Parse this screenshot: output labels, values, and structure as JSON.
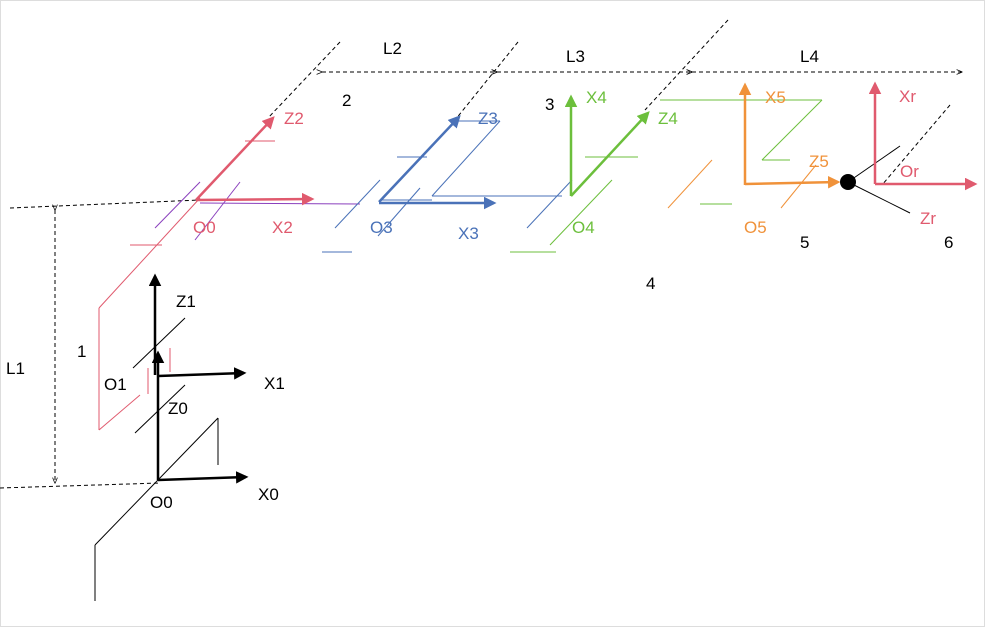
{
  "colors": {
    "base": "#000000",
    "link2": "#e05a6e",
    "link3": "#4a72b8",
    "link4": "#6cbf3c",
    "link5": "#f0923a",
    "link6": "#e05a6e",
    "purple": "#8a3fbd",
    "frame": "#dddddd"
  },
  "dimensions": {
    "L1": "L1",
    "L2": "L2",
    "L3": "L3",
    "L4": "L4"
  },
  "joints": {
    "j1": "1",
    "j2": "2",
    "j3": "3",
    "j4": "4",
    "j5": "5",
    "j6": "6"
  },
  "frames": {
    "f0": {
      "x": "X0",
      "z": "Z0",
      "o": "O0"
    },
    "f1": {
      "x": "X1",
      "z": "Z1",
      "o": "O1"
    },
    "f2": {
      "x": "X2",
      "z": "Z2",
      "o": "O0"
    },
    "f3": {
      "x": "X3",
      "z": "Z3",
      "o": "O3"
    },
    "f4": {
      "x": "X4",
      "z": "Z4",
      "o": "O4"
    },
    "f5": {
      "x": "X5",
      "z": "Z5",
      "o": "O5"
    },
    "fr": {
      "x": "Xr",
      "z": "Zr",
      "o": "Or"
    }
  }
}
